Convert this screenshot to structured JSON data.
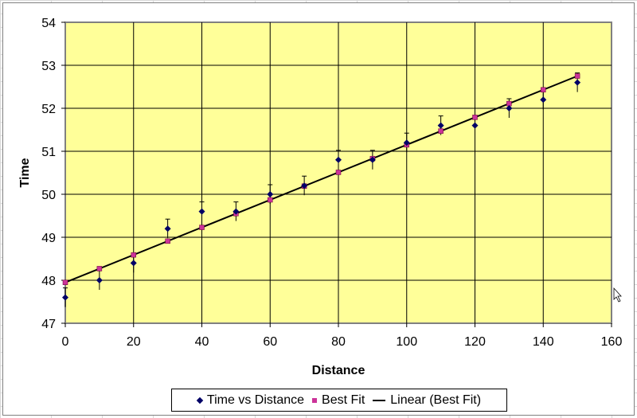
{
  "chart_data": {
    "type": "scatter",
    "title": "",
    "xlabel": "Distance",
    "ylabel": "Time",
    "xlim": [
      0,
      160
    ],
    "ylim": [
      47,
      54
    ],
    "xticks": [
      0,
      20,
      40,
      60,
      80,
      100,
      120,
      140,
      160
    ],
    "yticks": [
      47,
      48,
      49,
      50,
      51,
      52,
      53,
      54
    ],
    "grid": true,
    "plot_background": "#ffff99",
    "legend_position": "bottom",
    "series": [
      {
        "name": "Time vs Distance",
        "marker": "diamond",
        "color": "#000066",
        "x": [
          0,
          10,
          20,
          30,
          40,
          50,
          60,
          70,
          80,
          90,
          100,
          110,
          120,
          130,
          140,
          150
        ],
        "y": [
          47.6,
          48.0,
          48.4,
          49.2,
          49.6,
          49.6,
          50.0,
          50.2,
          50.8,
          50.8,
          51.2,
          51.6,
          51.6,
          52.0,
          52.2,
          52.6
        ],
        "error_bars": true
      },
      {
        "name": "Best Fit",
        "marker": "square",
        "color": "#cc3399",
        "x": [
          0,
          10,
          20,
          30,
          40,
          50,
          60,
          70,
          80,
          90,
          100,
          110,
          120,
          130,
          140,
          150
        ],
        "y": [
          47.95,
          48.27,
          48.59,
          48.91,
          49.23,
          49.55,
          49.87,
          50.19,
          50.51,
          50.83,
          51.15,
          51.47,
          51.79,
          52.11,
          52.43,
          52.75
        ]
      },
      {
        "name": "Linear (Best Fit)",
        "type": "line",
        "color": "#000000",
        "x": [
          0,
          150
        ],
        "y": [
          47.95,
          52.75
        ]
      }
    ]
  },
  "legend": {
    "items": [
      "Time vs Distance",
      "Best Fit",
      "Linear (Best Fit)"
    ]
  }
}
